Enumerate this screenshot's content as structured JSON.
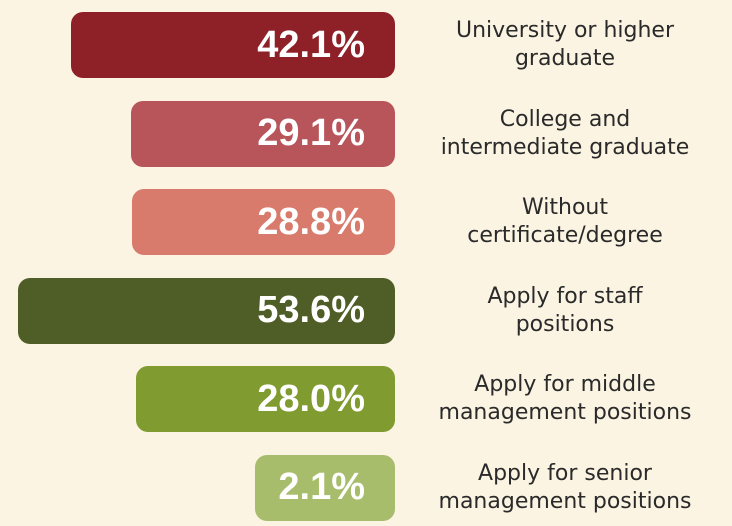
{
  "chart_data": {
    "type": "bar",
    "orientation": "horizontal",
    "categories": [
      "University or higher\ngraduate",
      "College and\nintermediate graduate",
      "Without\ncertificate/degree",
      "Apply for staff\npositions",
      "Apply for middle\nmanagement positions",
      "Apply for senior\nmanagement positions"
    ],
    "values": [
      42.1,
      29.1,
      28.8,
      53.6,
      28.0,
      2.1
    ],
    "value_labels": [
      "42.1%",
      "29.1%",
      "28.8%",
      "53.6%",
      "28.0%",
      "2.1%"
    ],
    "colors": [
      "#8e2027",
      "#b8555b",
      "#d87b6c",
      "#4f5d26",
      "#809b2f",
      "#a8bd6c"
    ]
  }
}
